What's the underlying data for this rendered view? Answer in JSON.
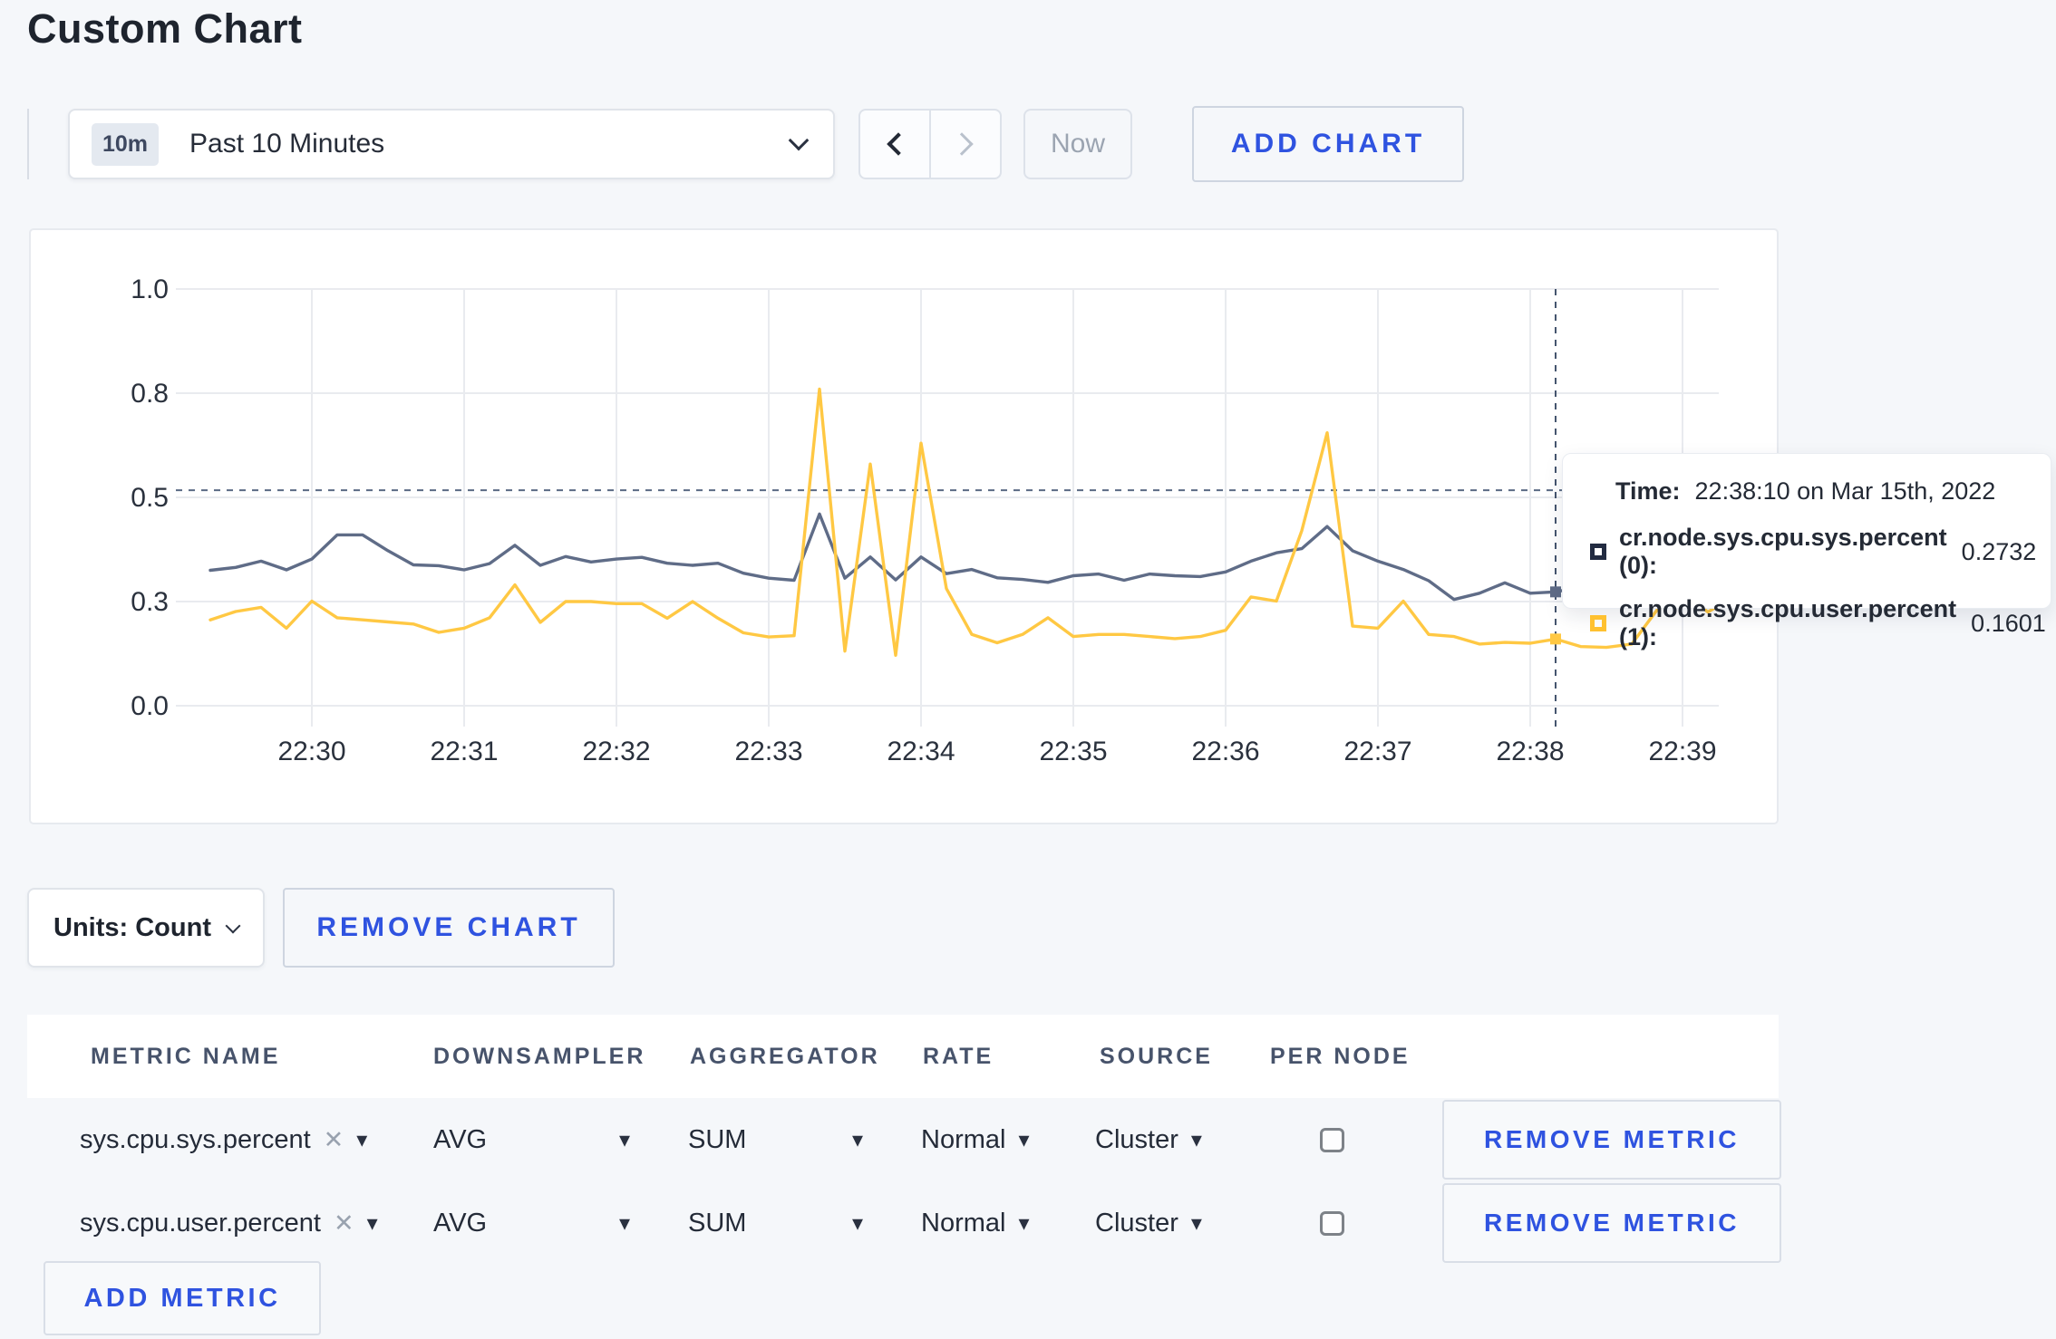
{
  "page": {
    "title": "Custom Chart"
  },
  "icons": {
    "caret_down": "▾",
    "close": "✕"
  },
  "toolbar": {
    "time_window": {
      "badge": "10m",
      "label": "Past 10 Minutes"
    },
    "now_label": "Now",
    "add_chart_label": "ADD CHART"
  },
  "chart": {
    "units_label": "Units: Count",
    "remove_chart_label": "REMOVE CHART",
    "tooltip": {
      "time_label": "Time:",
      "time_value": "22:38:10 on Mar 15th, 2022",
      "series": [
        {
          "label": "cr.node.sys.cpu.sys.percent (0):",
          "value": "0.2732",
          "color": "#222B41"
        },
        {
          "label": "cr.node.sys.cpu.user.percent (1):",
          "value": "0.1601",
          "color": "#FFC130"
        }
      ]
    }
  },
  "chart_data": {
    "type": "line",
    "title": "",
    "xlabel": "",
    "ylabel": "",
    "grid": true,
    "legend": "none",
    "ylim": [
      0,
      1
    ],
    "x_ticks": [
      "22:30",
      "22:31",
      "22:32",
      "22:33",
      "22:34",
      "22:35",
      "22:36",
      "22:37",
      "22:38",
      "22:39"
    ],
    "y_ticks": [
      {
        "label": "0.0",
        "value": 0
      },
      {
        "label": "0.3",
        "value": 0.25
      },
      {
        "label": "0.5",
        "value": 0.5
      },
      {
        "label": "0.8",
        "value": 0.75
      },
      {
        "label": "1.0",
        "value": 1.0
      }
    ],
    "step_seconds": 10,
    "start_offset_seconds": -40,
    "series": [
      {
        "name": "cr.node.sys.cpu.sys.percent (0)",
        "color": "#5F6C87",
        "values": [
          0.325,
          0.332,
          0.347,
          0.326,
          0.352,
          0.41,
          0.41,
          0.372,
          0.338,
          0.336,
          0.326,
          0.341,
          0.385,
          0.337,
          0.358,
          0.345,
          0.352,
          0.356,
          0.342,
          0.337,
          0.342,
          0.318,
          0.306,
          0.301,
          0.46,
          0.306,
          0.357,
          0.302,
          0.357,
          0.317,
          0.327,
          0.307,
          0.303,
          0.296,
          0.312,
          0.316,
          0.301,
          0.316,
          0.312,
          0.31,
          0.321,
          0.347,
          0.367,
          0.377,
          0.43,
          0.372,
          0.347,
          0.327,
          0.3,
          0.255,
          0.27,
          0.295,
          0.27,
          0.2732,
          0.285,
          0.305,
          0.29,
          0.285,
          0.3,
          0.31,
          0.3
        ]
      },
      {
        "name": "cr.node.sys.cpu.user.percent (1)",
        "color": "#FFC843",
        "values": [
          0.206,
          0.226,
          0.236,
          0.186,
          0.251,
          0.211,
          0.206,
          0.201,
          0.196,
          0.176,
          0.186,
          0.211,
          0.29,
          0.2,
          0.25,
          0.25,
          0.245,
          0.245,
          0.21,
          0.25,
          0.21,
          0.175,
          0.165,
          0.168,
          0.76,
          0.131,
          0.58,
          0.121,
          0.63,
          0.281,
          0.171,
          0.151,
          0.171,
          0.211,
          0.166,
          0.171,
          0.171,
          0.166,
          0.161,
          0.166,
          0.181,
          0.261,
          0.251,
          0.42,
          0.655,
          0.191,
          0.186,
          0.251,
          0.171,
          0.166,
          0.148,
          0.152,
          0.15,
          0.1601,
          0.142,
          0.14,
          0.148,
          0.23,
          0.272,
          0.225,
          0.26
        ]
      }
    ],
    "crosshair": {
      "index": 53,
      "y_value": 0.517,
      "time": "22:38:10 on Mar 15th, 2022"
    }
  },
  "metrics_table": {
    "headers": [
      "METRIC NAME",
      "DOWNSAMPLER",
      "AGGREGATOR",
      "RATE",
      "SOURCE",
      "PER NODE"
    ],
    "rows": [
      {
        "metric": "sys.cpu.sys.percent",
        "downsampler": "AVG",
        "aggregator": "SUM",
        "rate": "Normal",
        "source": "Cluster",
        "per_node": false,
        "remove_label": "REMOVE METRIC"
      },
      {
        "metric": "sys.cpu.user.percent",
        "downsampler": "AVG",
        "aggregator": "SUM",
        "rate": "Normal",
        "source": "Cluster",
        "per_node": false,
        "remove_label": "REMOVE METRIC"
      }
    ],
    "add_metric_label": "ADD METRIC"
  }
}
